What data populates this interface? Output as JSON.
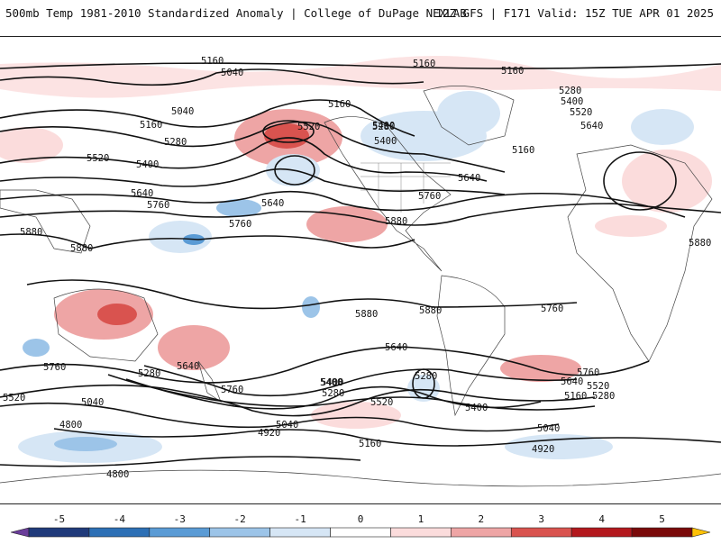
{
  "header": {
    "title": "500mb Temp 1981-2010 Standardized Anomaly | College of DuPage NEXLAB",
    "run_info": "12Z GFS | F171 Valid: 15Z TUE APR 01 2025"
  },
  "colorbar": {
    "ticks": [
      "-5",
      "-4",
      "-3",
      "-2",
      "-1",
      "0",
      "1",
      "2",
      "3",
      "4",
      "5"
    ],
    "colors": [
      "#6a3d9a",
      "#1f3a7a",
      "#2c6fb5",
      "#5a9bd5",
      "#9cc4e8",
      "#d6e6f5",
      "#ffffff",
      "#fbdcdc",
      "#eea5a5",
      "#d9534f",
      "#b3181d",
      "#7a0a0a",
      "#ffc107"
    ]
  },
  "height_labels": [
    "5160",
    "5040",
    "5160",
    "5160",
    "5040",
    "5160",
    "5160",
    "5280",
    "5400",
    "5520",
    "5640",
    "5520",
    "5280",
    "5400",
    "5280",
    "5400",
    "5160",
    "5520",
    "5640",
    "5400",
    "5760",
    "5640",
    "5760",
    "5880",
    "5760",
    "5640",
    "5880",
    "5880",
    "5880",
    "5880",
    "5880",
    "5760",
    "5640",
    "5760",
    "5640",
    "5280",
    "5760",
    "5280",
    "5400",
    "5520",
    "5040",
    "5400",
    "5520",
    "5280",
    "5400",
    "5760",
    "5640",
    "5520",
    "5160",
    "5280",
    "5040",
    "4920",
    "5160",
    "4920",
    "5040",
    "4800",
    "4800"
  ]
}
